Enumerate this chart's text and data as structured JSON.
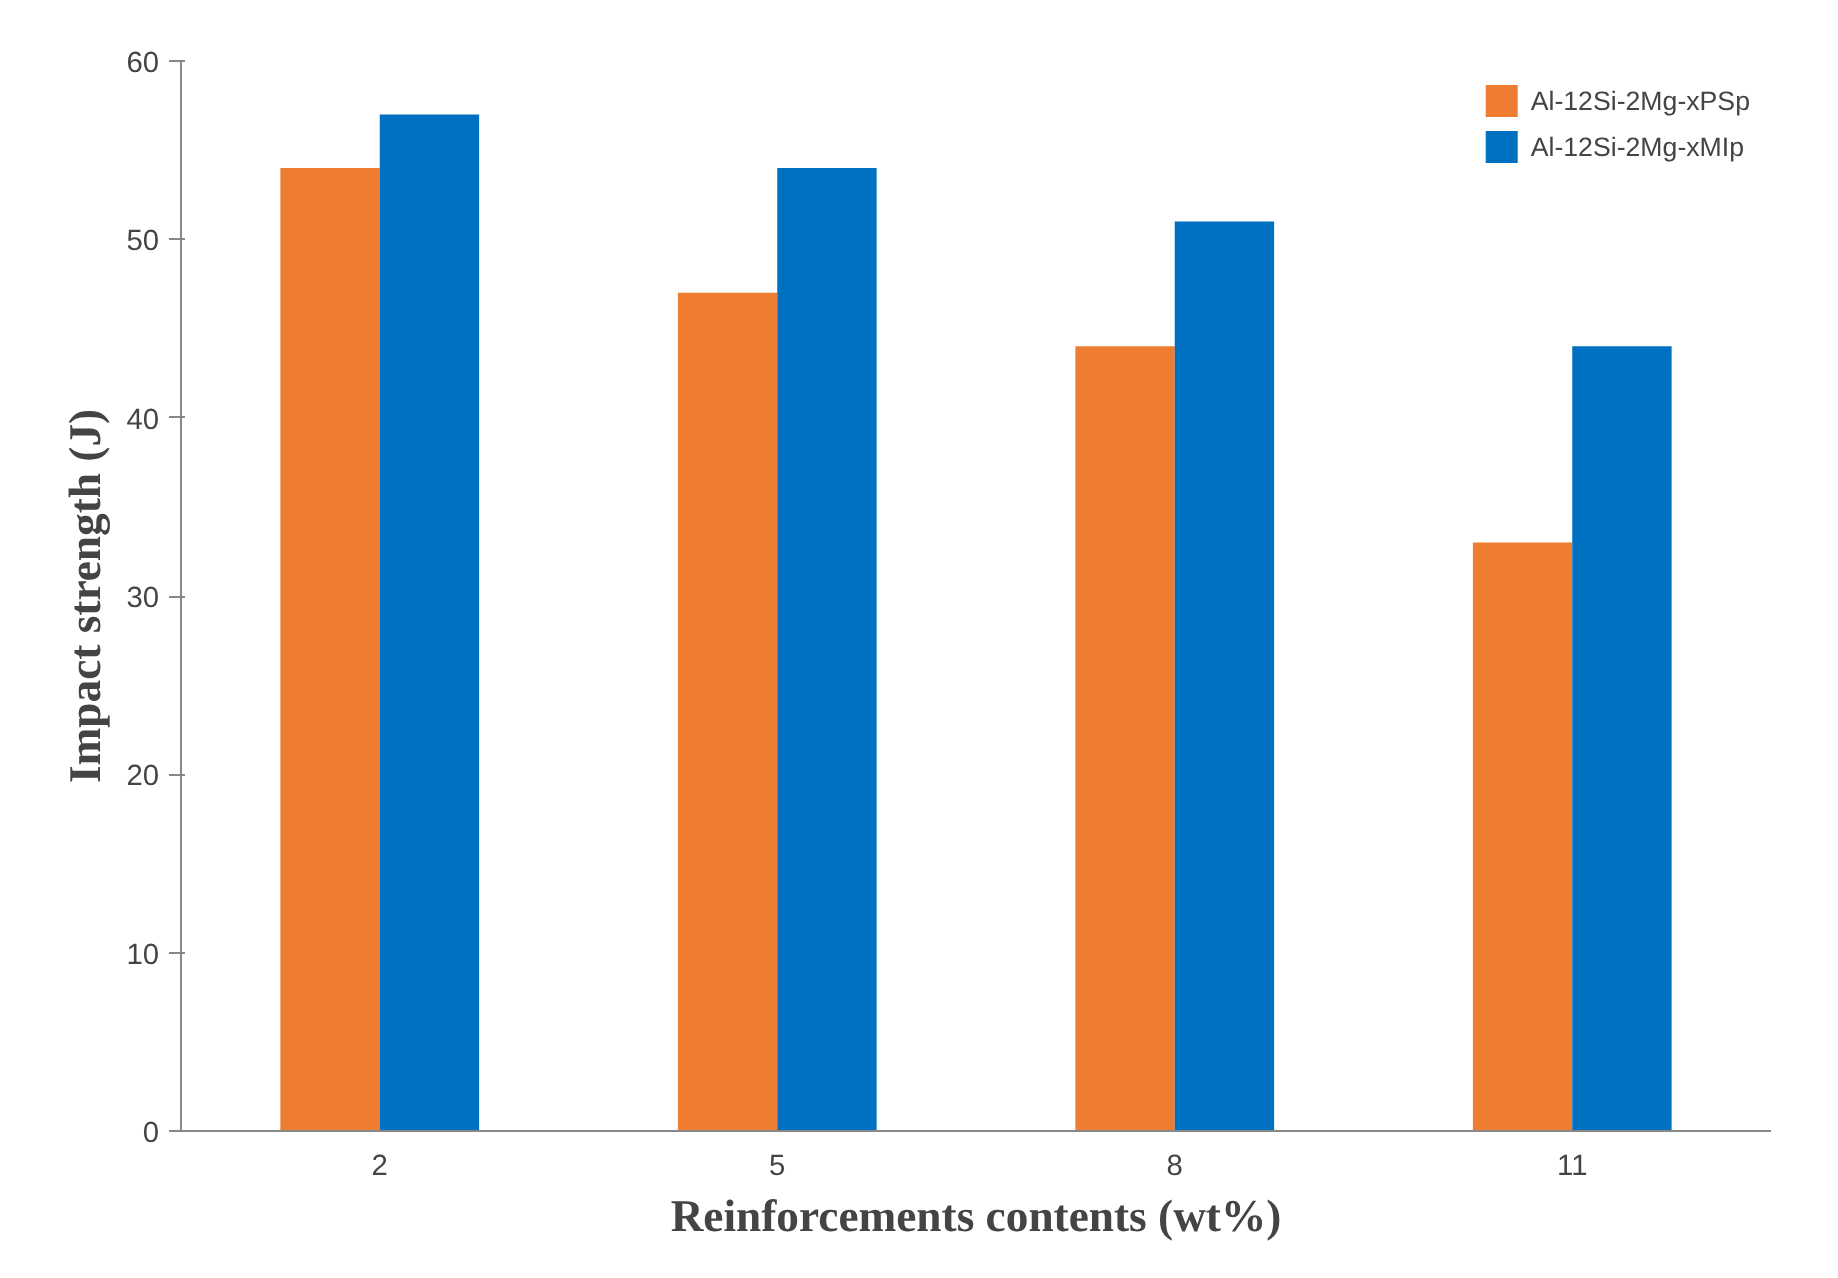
{
  "chart_data": {
    "type": "bar",
    "xlabel": "Reinforcements contents (wt%)",
    "ylabel": "Impact strength (J)",
    "categories": [
      "2",
      "5",
      "8",
      "11"
    ],
    "series": [
      {
        "name": "Al-12Si-2Mg-xPSp",
        "color": "#ee7d31",
        "values": [
          54,
          47,
          44,
          33
        ]
      },
      {
        "name": "Al-12Si-2Mg-xMIp",
        "color": "#0070c0",
        "values": [
          57,
          54,
          51,
          44
        ]
      }
    ],
    "ylim": [
      0,
      60
    ],
    "yticks": [
      0,
      10,
      20,
      30,
      40,
      50,
      60
    ],
    "grid": false,
    "legend": "top right"
  }
}
